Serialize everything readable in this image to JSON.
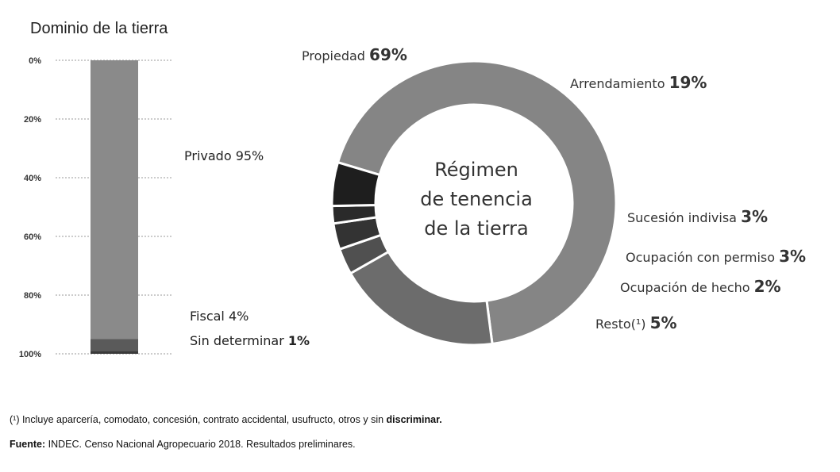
{
  "chart_data": [
    {
      "type": "bar",
      "stacked": true,
      "title": "Dominio de la tierra",
      "y_ticks": [
        "0%",
        "20%",
        "40%",
        "60%",
        "80%",
        "100%"
      ],
      "ylim": [
        0,
        100
      ],
      "series": [
        {
          "name": "Privado",
          "label": "Privado 95%",
          "value": 95,
          "color": "#8a8a8a"
        },
        {
          "name": "Fiscal",
          "label": "Fiscal 4%",
          "value": 4,
          "color": "#5a5a5a"
        },
        {
          "name": "Sin determinar",
          "label_text": "Sin determinar",
          "label_pct": "1%",
          "value": 1,
          "color": "#3a3a3a"
        }
      ]
    },
    {
      "type": "pie",
      "donut": true,
      "center_label": [
        "Régimen",
        "de tenencia",
        "de la tierra"
      ],
      "slices": [
        {
          "name": "Propiedad",
          "pct_label": "69%",
          "value": 69,
          "color": "#858585"
        },
        {
          "name": "Arrendamiento",
          "pct_label": "19%",
          "value": 19,
          "color": "#6c6c6c"
        },
        {
          "name": "Sucesión indivisa",
          "pct_label": "3%",
          "value": 3,
          "color": "#505050"
        },
        {
          "name": "Ocupación con permiso",
          "pct_label": "3%",
          "value": 3,
          "color": "#333333"
        },
        {
          "name": "Ocupación de hecho",
          "pct_label": "2%",
          "value": 2,
          "color": "#2a2a2a"
        },
        {
          "name": "Resto(¹)",
          "pct_label": "5%",
          "value": 5,
          "color": "#1e1e1e"
        }
      ]
    }
  ],
  "footnote": {
    "line1": "(¹) Incluye aparcería, comodato, concesión, contrato accidental, usufructo, otros y sin ",
    "line1_bold": "discriminar.",
    "line2_bold": "Fuente:",
    "line2": " INDEC. Censo Nacional Agropecuario 2018. Resultados preliminares."
  }
}
